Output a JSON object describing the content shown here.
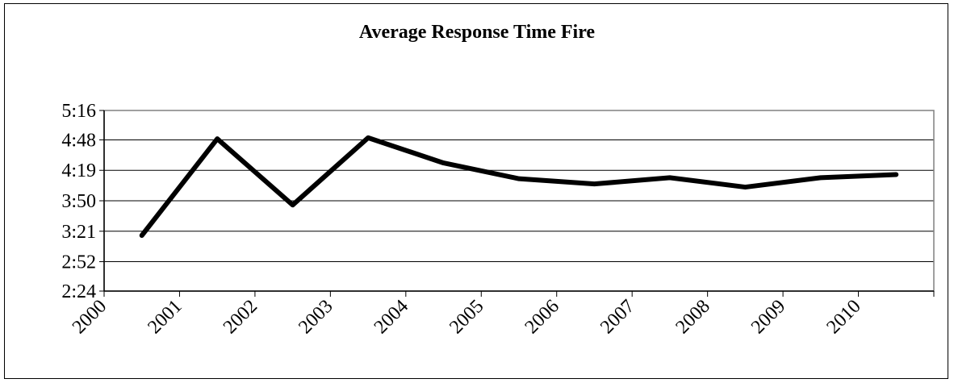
{
  "chart_data": {
    "type": "line",
    "title": "Average Response Time Fire",
    "xlabel": "",
    "ylabel": "",
    "categories": [
      "2000",
      "2001",
      "2002",
      "2003",
      "2004",
      "2005",
      "2006",
      "2007",
      "2008",
      "2009",
      "2010"
    ],
    "y_ticks": [
      "2:24",
      "2:52",
      "3:21",
      "3:50",
      "4:19",
      "4:48",
      "5:16"
    ],
    "ylim_seconds": [
      144,
      316
    ],
    "ytick_seconds": [
      144,
      172,
      201,
      230,
      259,
      288,
      316
    ],
    "series": [
      {
        "values_seconds": [
          197,
          289,
          226,
          290,
          266,
          251,
          246,
          252,
          243,
          252,
          255
        ]
      }
    ],
    "grid": true,
    "legend": "none",
    "line_color": "#000000"
  }
}
